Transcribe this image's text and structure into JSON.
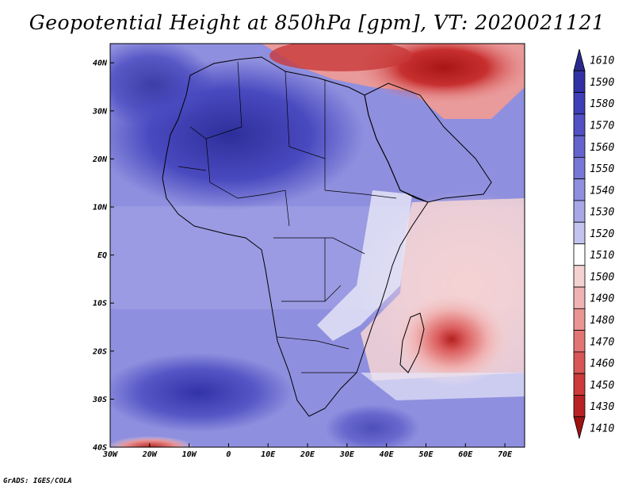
{
  "title": "Geopotential Height at 850hPa [gpm], VT: 2020021121",
  "footer": "GrADS: IGES/COLA",
  "map": {
    "lat_labels": [
      "40N",
      "30N",
      "20N",
      "10N",
      "EQ",
      "10S",
      "20S",
      "30S",
      "40S"
    ],
    "lat_values": [
      40,
      30,
      20,
      10,
      0,
      -10,
      -20,
      -30,
      -40
    ],
    "lon_labels": [
      "30W",
      "20W",
      "10W",
      "0",
      "10E",
      "20E",
      "30E",
      "40E",
      "50E",
      "60E",
      "70E"
    ],
    "lon_values": [
      -30,
      -20,
      -10,
      0,
      10,
      20,
      30,
      40,
      50,
      60,
      70
    ],
    "lat_range": [
      -40,
      44
    ],
    "lon_range": [
      -30,
      75
    ]
  },
  "colorbar": {
    "levels": [
      "1610",
      "1590",
      "1580",
      "1570",
      "1560",
      "1550",
      "1540",
      "1530",
      "1520",
      "1510",
      "1500",
      "1490",
      "1480",
      "1470",
      "1460",
      "1450",
      "1430",
      "1410"
    ],
    "colors": [
      "#2a2a8e",
      "#3131a5",
      "#3e3eb8",
      "#5151c4",
      "#6464cd",
      "#7777d6",
      "#8f8fdf",
      "#a8a8e7",
      "#c3c3ef",
      "#ffffff",
      "#f5d2d2",
      "#f0b3b3",
      "#ea9494",
      "#e27474",
      "#d85656",
      "#cc3a3a",
      "#b82222",
      "#9e1212"
    ]
  }
}
